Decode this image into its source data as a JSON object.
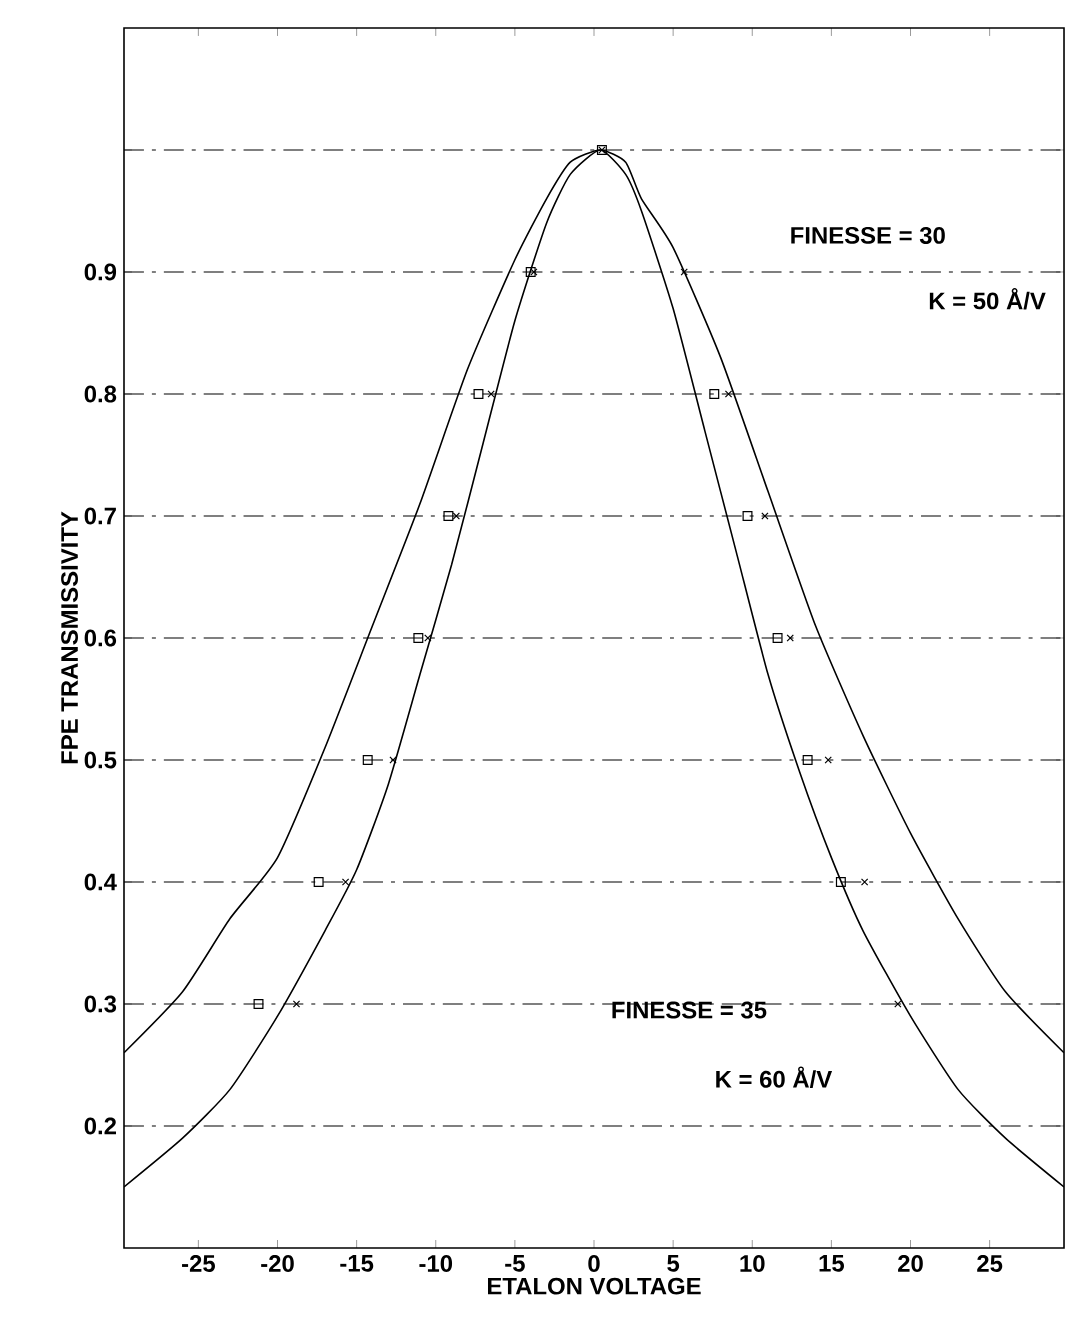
{
  "chart_data": {
    "type": "line",
    "xlabel": "ETALON VOLTAGE",
    "ylabel": "FPE TRANSMISSIVITY",
    "xlim": [
      -29.7,
      29.7
    ],
    "ylim": [
      0.1,
      1.1
    ],
    "xticks": [
      -25,
      -20,
      -15,
      -10,
      -5,
      0,
      5,
      10,
      15,
      20,
      25
    ],
    "yticks": [
      0.2,
      0.3,
      0.4,
      0.5,
      0.6,
      0.7,
      0.8,
      0.9,
      {
        "value": 1.0,
        "label": null
      }
    ],
    "grid": "y",
    "annotations": [
      "FINESSE = 30",
      "K = 50 Å/V",
      "FINESSE = 35",
      "K = 60 Å/V"
    ],
    "series": [
      {
        "color": "#000000",
        "marker": "none",
        "line_style": "solid",
        "x": [
          -29.7,
          -26,
          -23,
          -20,
          -17,
          -14,
          -11,
          -8,
          -5,
          -3,
          -1.5,
          0.4,
          2,
          3,
          5,
          8,
          11,
          14,
          17,
          20,
          23,
          26,
          29.7
        ],
        "values": [
          0.26,
          0.31,
          0.37,
          0.42,
          0.51,
          0.61,
          0.71,
          0.82,
          0.91,
          0.96,
          0.99,
          1.0,
          0.99,
          0.96,
          0.92,
          0.83,
          0.72,
          0.61,
          0.52,
          0.44,
          0.37,
          0.31,
          0.26
        ]
      },
      {
        "color": "#000000",
        "marker": "none",
        "line_style": "solid",
        "x": [
          -29.7,
          -26,
          -23,
          -20,
          -17,
          -15,
          -13,
          -11,
          -9,
          -7,
          -5,
          -3,
          -1.5,
          0.4,
          2,
          3,
          5,
          7,
          9,
          11,
          13,
          15,
          17,
          20,
          23,
          26,
          29.7
        ],
        "values": [
          0.15,
          0.19,
          0.23,
          0.29,
          0.36,
          0.41,
          0.48,
          0.57,
          0.66,
          0.76,
          0.86,
          0.94,
          0.98,
          1.0,
          0.98,
          0.95,
          0.87,
          0.77,
          0.67,
          0.57,
          0.49,
          0.42,
          0.36,
          0.29,
          0.23,
          0.19,
          0.15
        ]
      },
      {
        "type": "scatter",
        "color": "#000000",
        "marker": "square",
        "x": [
          -21.2,
          -17.4,
          -14.3,
          -11.1,
          -9.2,
          -7.3,
          -4.0,
          0.5,
          7.6,
          9.7,
          11.6,
          13.5,
          15.6
        ],
        "values": [
          0.3,
          0.4,
          0.5,
          0.6,
          0.7,
          0.8,
          0.9,
          1.0,
          0.8,
          0.7,
          0.6,
          0.5,
          0.4
        ]
      },
      {
        "type": "scatter",
        "color": "#000000",
        "marker": "cross",
        "x": [
          -18.8,
          -15.7,
          -12.7,
          -10.5,
          -8.7,
          -6.5,
          -3.8,
          0.5,
          5.7,
          8.5,
          10.8,
          12.4,
          14.8,
          17.1,
          19.2
        ],
        "values": [
          0.3,
          0.4,
          0.5,
          0.6,
          0.7,
          0.8,
          0.9,
          1.0,
          0.9,
          0.8,
          0.7,
          0.6,
          0.5,
          0.4,
          0.3
        ]
      }
    ]
  }
}
